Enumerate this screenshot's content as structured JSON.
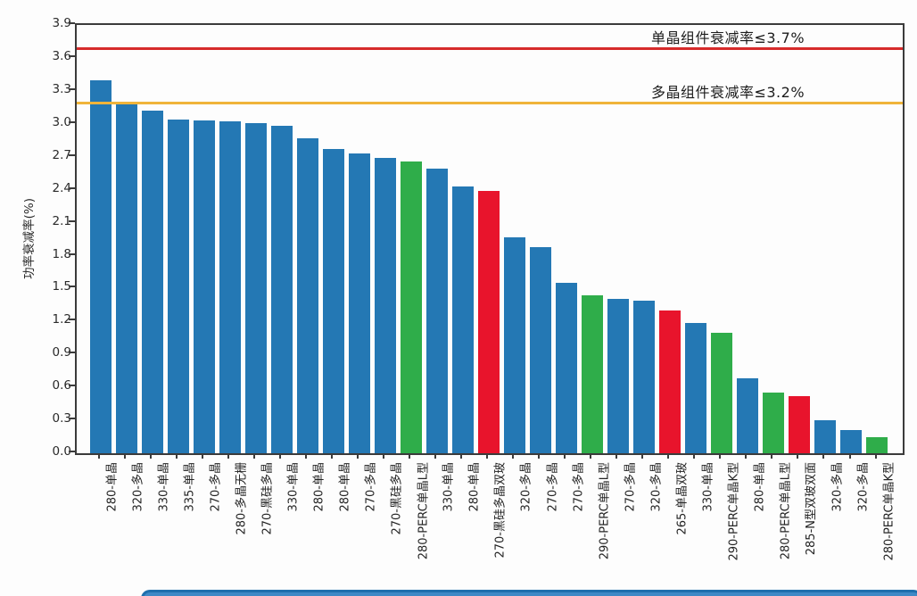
{
  "chart_data": {
    "type": "bar",
    "title": "",
    "xlabel": "",
    "ylabel": "功率衰减率(%)",
    "ylim": [
      0.0,
      3.9
    ],
    "ytick_step": 0.3,
    "ytick_labels": [
      "0.0",
      "0.3",
      "0.6",
      "0.9",
      "1.2",
      "1.5",
      "1.8",
      "2.1",
      "2.4",
      "2.7",
      "3.0",
      "3.3",
      "3.6",
      "3.9"
    ],
    "grid": false,
    "legend": "none",
    "categories": [
      "280-单晶",
      "320-多晶",
      "330-单晶",
      "335-单晶",
      "270-多晶",
      "280-多晶无栅",
      "270-黑硅多晶",
      "330-单晶",
      "280-单晶",
      "280-单晶",
      "270-多晶",
      "270-黑硅多晶",
      "280-PERC单晶L型",
      "330-单晶",
      "280-单晶",
      "270-黑硅多晶双玻",
      "320-多晶",
      "270-多晶",
      "270-多晶",
      "290-PERC单晶L型",
      "270-多晶",
      "320-多晶",
      "265-单晶双玻",
      "330-单晶",
      "290-PERC单晶K型",
      "280-单晶",
      "280-PERC单晶L型",
      "285-N型双玻双面",
      "320-多晶",
      "320-多晶",
      "280-PERC单晶K型"
    ],
    "values": [
      3.4,
      3.19,
      3.12,
      3.04,
      3.03,
      3.02,
      3.01,
      2.98,
      2.87,
      2.77,
      2.73,
      2.69,
      2.66,
      2.59,
      2.43,
      2.39,
      1.97,
      1.88,
      1.55,
      1.44,
      1.41,
      1.39,
      1.3,
      1.19,
      1.1,
      0.68,
      0.55,
      0.52,
      0.3,
      0.21,
      0.15
    ],
    "bar_colors": [
      "blue",
      "blue",
      "blue",
      "blue",
      "blue",
      "blue",
      "blue",
      "blue",
      "blue",
      "blue",
      "blue",
      "blue",
      "green",
      "blue",
      "blue",
      "red",
      "blue",
      "blue",
      "blue",
      "green",
      "blue",
      "blue",
      "red",
      "blue",
      "green",
      "blue",
      "green",
      "red",
      "blue",
      "blue",
      "green"
    ],
    "palette": {
      "blue": "#2478b4",
      "green": "#2fad4a",
      "red": "#e8142c"
    },
    "reference_lines": [
      {
        "label": "单晶组件衰减率≤3.7%",
        "value": 3.7,
        "color": "#d62b2b"
      },
      {
        "label": "多晶组件衰减率≤3.2%",
        "value": 3.2,
        "color": "#f0b43a"
      }
    ]
  },
  "footer": {
    "banner_fill": "#3e89c6",
    "banner_border": "#1e6fad"
  }
}
